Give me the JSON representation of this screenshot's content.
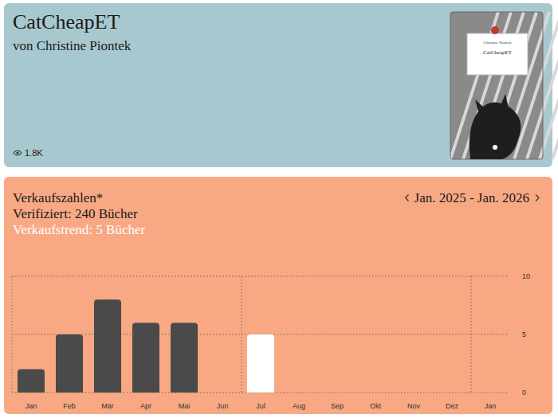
{
  "book": {
    "title": "CatCheapET",
    "author": "von Christine Piontek",
    "views": "1.8K",
    "cover": {
      "author": "Christine Piontek",
      "title": "CatCheapET"
    }
  },
  "sales": {
    "heading": "Verkaufszahlen*",
    "verified": "Verifiziert: 240 Bücher",
    "trend": "Verkaufstrend: 5 Bücher",
    "period": "Jan. 2025 - Jan. 2026"
  },
  "chart_data": {
    "type": "bar",
    "categories": [
      "Jan",
      "Feb",
      "Mär",
      "Apr",
      "Mai",
      "Jun",
      "Jul",
      "Aug",
      "Sep",
      "Okt",
      "Nov",
      "Dez",
      "Jan"
    ],
    "values": [
      2,
      5,
      8,
      6,
      6,
      0,
      5,
      0,
      0,
      0,
      0,
      0,
      0
    ],
    "colors": [
      "#4a4a4a",
      "#4a4a4a",
      "#4a4a4a",
      "#4a4a4a",
      "#4a4a4a",
      "#4a4a4a",
      "#ffffff",
      "#4a4a4a",
      "#4a4a4a",
      "#4a4a4a",
      "#4a4a4a",
      "#4a4a4a",
      "#4a4a4a"
    ],
    "ylim": [
      0,
      10
    ],
    "yticks": [
      0,
      5,
      10
    ],
    "grid": true
  }
}
